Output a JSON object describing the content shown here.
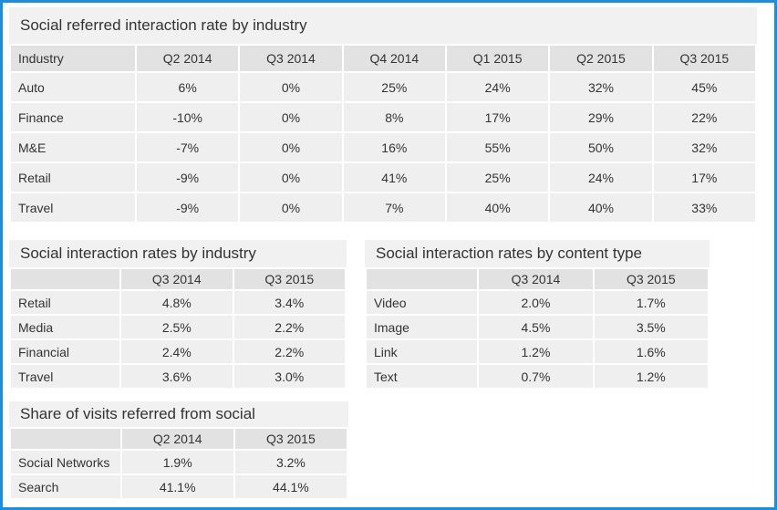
{
  "tables": [
    {
      "title": "Social referred interaction rate by industry",
      "header": [
        "Industry",
        "Q2 2014",
        "Q3 2014",
        "Q4 2014",
        "Q1 2015",
        "Q2 2015",
        "Q3 2015"
      ],
      "rows": [
        [
          "Auto",
          "6%",
          "0%",
          "25%",
          "24%",
          "32%",
          "45%"
        ],
        [
          "Finance",
          "-10%",
          "0%",
          "8%",
          "17%",
          "29%",
          "22%"
        ],
        [
          "M&E",
          "-7%",
          "0%",
          "16%",
          "55%",
          "50%",
          "32%"
        ],
        [
          "Retail",
          "-9%",
          "0%",
          "41%",
          "25%",
          "24%",
          "17%"
        ],
        [
          "Travel",
          "-9%",
          "0%",
          "7%",
          "40%",
          "40%",
          "33%"
        ]
      ]
    },
    {
      "title": "Social interaction rates by industry",
      "header": [
        "",
        "Q3 2014",
        "Q3  2015"
      ],
      "rows": [
        [
          "Retail",
          "4.8%",
          "3.4%"
        ],
        [
          "Media",
          "2.5%",
          "2.2%"
        ],
        [
          "Financial",
          "2.4%",
          "2.2%"
        ],
        [
          "Travel",
          "3.6%",
          "3.0%"
        ]
      ]
    },
    {
      "title": "Social interaction rates by content type",
      "header": [
        "",
        "Q3 2014",
        "Q3 2015"
      ],
      "rows": [
        [
          "Video",
          "2.0%",
          "1.7%"
        ],
        [
          "Image",
          "4.5%",
          "3.5%"
        ],
        [
          "Link",
          "1.2%",
          "1.6%"
        ],
        [
          "Text",
          "0.7%",
          "1.2%"
        ]
      ]
    },
    {
      "title": "Share of visits referred from social",
      "header": [
        "",
        "Q2 2014",
        "Q3  2015"
      ],
      "rows": [
        [
          "Social Networks",
          "1.9%",
          "3.2%"
        ],
        [
          "Search",
          "41.1%",
          "44.1%"
        ]
      ]
    }
  ]
}
